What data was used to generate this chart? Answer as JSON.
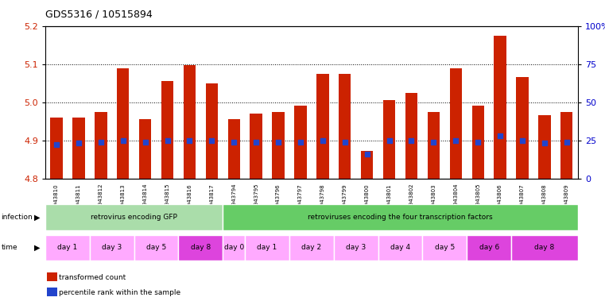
{
  "title": "GDS5316 / 10515894",
  "samples": [
    "GSM943810",
    "GSM943811",
    "GSM943812",
    "GSM943813",
    "GSM943814",
    "GSM943815",
    "GSM943816",
    "GSM943817",
    "GSM943794",
    "GSM943795",
    "GSM943796",
    "GSM943797",
    "GSM943798",
    "GSM943799",
    "GSM943800",
    "GSM943801",
    "GSM943802",
    "GSM943803",
    "GSM943804",
    "GSM943805",
    "GSM943806",
    "GSM943807",
    "GSM943808",
    "GSM943809"
  ],
  "transformed_count": [
    4.96,
    4.96,
    4.975,
    5.088,
    4.955,
    5.055,
    5.098,
    5.05,
    4.955,
    4.97,
    4.975,
    4.99,
    5.075,
    5.075,
    4.872,
    5.005,
    5.025,
    4.975,
    5.088,
    4.99,
    5.175,
    5.065,
    4.965,
    4.975
  ],
  "percentile_rank": [
    22,
    23,
    24,
    25,
    24,
    25,
    25,
    25,
    24,
    24,
    24,
    24,
    25,
    24,
    16,
    25,
    25,
    24,
    25,
    24,
    28,
    25,
    23,
    24
  ],
  "ylim_left": [
    4.8,
    5.2
  ],
  "ylim_right": [
    0,
    100
  ],
  "yticks_left": [
    4.8,
    4.9,
    5.0,
    5.1,
    5.2
  ],
  "yticks_right": [
    0,
    25,
    50,
    75,
    100
  ],
  "bar_color": "#cc2200",
  "dot_color": "#2244cc",
  "infection_groups": [
    {
      "label": "retrovirus encoding GFP",
      "start": 0,
      "end": 7,
      "color": "#aaddaa"
    },
    {
      "label": "retroviruses encoding the four transcription factors",
      "start": 8,
      "end": 23,
      "color": "#66cc66"
    }
  ],
  "time_groups": [
    {
      "label": "day 1",
      "start": 0,
      "end": 1,
      "color": "#ffaaff"
    },
    {
      "label": "day 3",
      "start": 2,
      "end": 3,
      "color": "#ffaaff"
    },
    {
      "label": "day 5",
      "start": 4,
      "end": 5,
      "color": "#ffaaff"
    },
    {
      "label": "day 8",
      "start": 6,
      "end": 7,
      "color": "#dd44dd"
    },
    {
      "label": "day 0",
      "start": 8,
      "end": 8,
      "color": "#ffaaff"
    },
    {
      "label": "day 1",
      "start": 9,
      "end": 10,
      "color": "#ffaaff"
    },
    {
      "label": "day 2",
      "start": 11,
      "end": 12,
      "color": "#ffaaff"
    },
    {
      "label": "day 3",
      "start": 13,
      "end": 14,
      "color": "#ffaaff"
    },
    {
      "label": "day 4",
      "start": 15,
      "end": 16,
      "color": "#ffaaff"
    },
    {
      "label": "day 5",
      "start": 17,
      "end": 18,
      "color": "#ffaaff"
    },
    {
      "label": "day 6",
      "start": 19,
      "end": 20,
      "color": "#dd44dd"
    },
    {
      "label": "day 8",
      "start": 21,
      "end": 23,
      "color": "#dd44dd"
    }
  ],
  "legend_items": [
    {
      "label": "transformed count",
      "color": "#cc2200"
    },
    {
      "label": "percentile rank within the sample",
      "color": "#2244cc"
    }
  ],
  "background_color": "#ffffff",
  "title_fontsize": 9,
  "grid_dotted_at": [
    4.9,
    5.0,
    5.1
  ],
  "left_axis_color": "#cc2200",
  "right_axis_color": "#0000cc"
}
